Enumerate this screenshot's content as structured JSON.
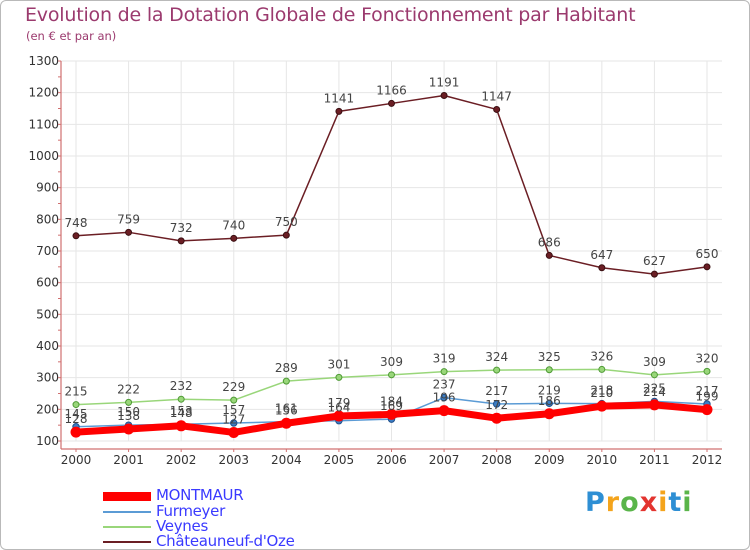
{
  "header": {
    "title": "Evolution de la Dotation Globale de Fonctionnement par Habitant",
    "subtitle": "(en € et par an)"
  },
  "chart_data": {
    "type": "line",
    "title": "Evolution de la Dotation Globale de Fonctionnement par Habitant",
    "subtitle": "(en € et par an)",
    "xlabel": "",
    "ylabel": "",
    "x": [
      "2000",
      "2001",
      "2002",
      "2003",
      "2004",
      "2005",
      "2006",
      "2007",
      "2008",
      "2009",
      "2010",
      "2011",
      "2012"
    ],
    "ylim": [
      100,
      1300
    ],
    "yticks": [
      "100",
      "200",
      "300",
      "400",
      "500",
      "600",
      "700",
      "800",
      "900",
      "1000",
      "1100",
      "1200",
      "1300"
    ],
    "grid": true,
    "legend_position": "bottom-left",
    "series": [
      {
        "name": "Châteauneuf-d'Oze",
        "color": "#6b1e24",
        "values": [
          748,
          759,
          732,
          740,
          750,
          1141,
          1166,
          1191,
          1147,
          686,
          647,
          627,
          650
        ]
      },
      {
        "name": "Veynes",
        "color": "#99d67a",
        "values": [
          215,
          222,
          232,
          229,
          289,
          301,
          309,
          319,
          324,
          325,
          326,
          309,
          320
        ]
      },
      {
        "name": "Furmeyer",
        "color": "#5b9bd5",
        "values": [
          145,
          150,
          153,
          157,
          161,
          164,
          169,
          237,
          217,
          219,
          218,
          225,
          217
        ]
      },
      {
        "name": "MONTMAUR",
        "color": "#ff0000",
        "values": [
          128,
          138,
          148,
          127,
          156,
          179,
          184,
          196,
          172,
          186,
          210,
          214,
          199
        ]
      }
    ],
    "labels": {
      "Châteauneuf-d'Oze": [
        "748",
        "759",
        "732",
        "740",
        "750",
        "1141",
        "1166",
        "1191",
        "1147",
        "686",
        "647",
        "627",
        "650"
      ],
      "Veynes": [
        "215",
        "222",
        "232",
        "229",
        "289",
        "301",
        "309",
        "319",
        "324",
        "325",
        "326",
        "309",
        "320"
      ],
      "Furmeyer": [
        "145",
        "150",
        "153",
        "157",
        "161",
        "164",
        "169",
        "237",
        "217",
        "219",
        "218",
        "225",
        "217"
      ],
      "MONTMAUR": [
        "128",
        "138",
        "148",
        "127",
        "156",
        "179",
        "184",
        "196",
        "172",
        "186",
        "210",
        "214",
        "199"
      ]
    }
  },
  "legend": [
    {
      "name": "MONTMAUR",
      "color": "#ff0000",
      "text_color": "#3a3aff"
    },
    {
      "name": "Furmeyer",
      "color": "#5b9bd5",
      "text_color": "#3a3aff"
    },
    {
      "name": "Veynes",
      "color": "#99d67a",
      "text_color": "#3a3aff"
    },
    {
      "name": "Châteauneuf-d'Oze",
      "color": "#6b1e24",
      "text_color": "#3a3aff"
    }
  ],
  "logo": {
    "letters": [
      "P",
      "r",
      "o",
      "x",
      "i",
      "t",
      "i"
    ],
    "colors": [
      "#2e8fd4",
      "#f4a41c",
      "#5ab54a",
      "#e3342f",
      "#f4a41c",
      "#2e8fd4",
      "#5ab54a"
    ]
  }
}
